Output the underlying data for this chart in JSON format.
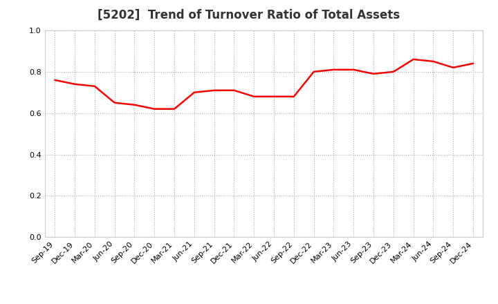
{
  "title": "[5202]  Trend of Turnover Ratio of Total Assets",
  "x_labels": [
    "Sep-19",
    "Dec-19",
    "Mar-20",
    "Jun-20",
    "Sep-20",
    "Dec-20",
    "Mar-21",
    "Jun-21",
    "Sep-21",
    "Dec-21",
    "Mar-22",
    "Jun-22",
    "Sep-22",
    "Dec-22",
    "Mar-23",
    "Jun-23",
    "Sep-23",
    "Dec-23",
    "Mar-24",
    "Jun-24",
    "Sep-24",
    "Dec-24"
  ],
  "y_values": [
    0.76,
    0.74,
    0.73,
    0.65,
    0.64,
    0.62,
    0.62,
    0.7,
    0.71,
    0.71,
    0.68,
    0.68,
    0.68,
    0.8,
    0.81,
    0.81,
    0.79,
    0.8,
    0.86,
    0.85,
    0.82,
    0.84
  ],
  "ylim": [
    0.0,
    1.0
  ],
  "yticks": [
    0.0,
    0.2,
    0.4,
    0.6,
    0.8,
    1.0
  ],
  "line_color": "#ff0000",
  "line_width": 1.8,
  "bg_color": "#ffffff",
  "plot_bg_color": "#ffffff",
  "grid_color": "#aaaaaa",
  "title_fontsize": 12,
  "tick_fontsize": 8,
  "title_color": "#333333"
}
